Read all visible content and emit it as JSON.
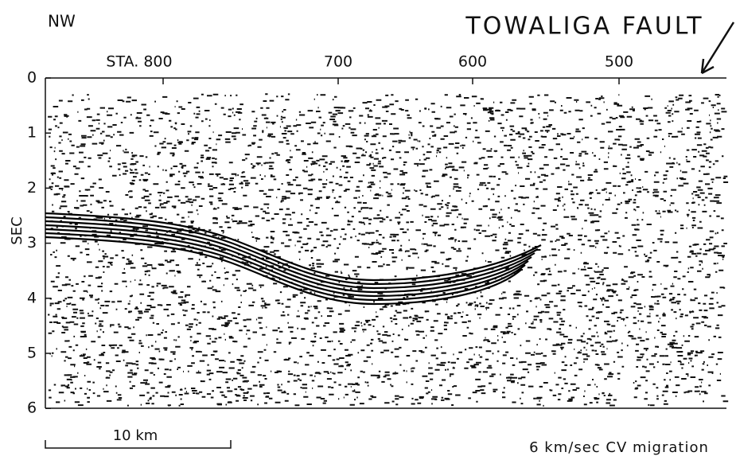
{
  "header": {
    "left": "NW",
    "title": "TOWALIGA FAULT"
  },
  "top_axis": {
    "labels": [
      "STA. 800",
      "700",
      "600",
      "500"
    ]
  },
  "left_axis": {
    "title": "SEC",
    "labels": [
      "0",
      "1",
      "2",
      "3",
      "4",
      "5",
      "6"
    ]
  },
  "footer": {
    "scale": "10 km",
    "caption": "6 km/sec CV migration"
  }
}
